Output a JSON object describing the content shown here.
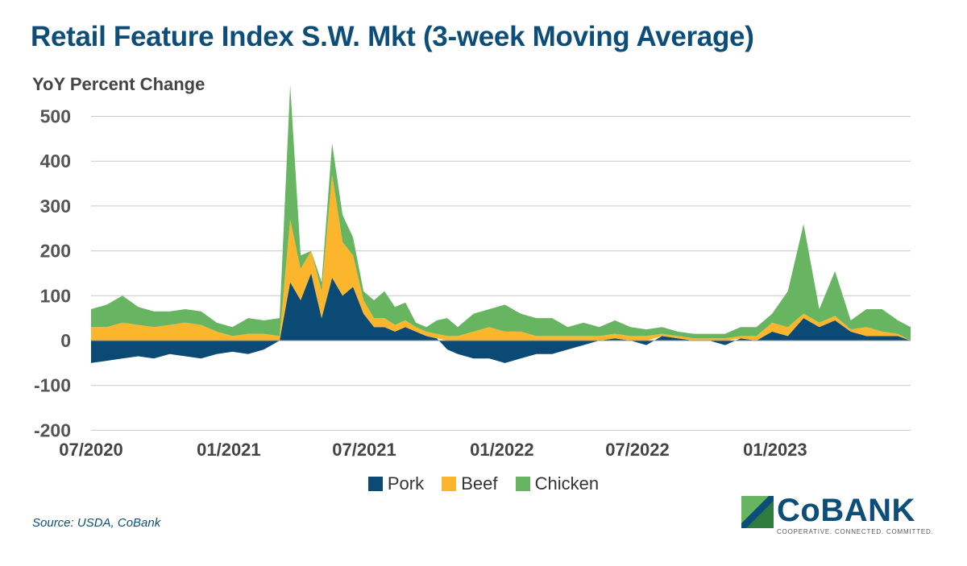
{
  "header": {
    "title": "Retail Feature Index S.W. Mkt (3-week Moving Average)"
  },
  "footer": {
    "source": "Source: USDA, CoBank"
  },
  "logo": {
    "name": "CoBANK",
    "tagline": "COOPERATIVE. CONNECTED. COMMITTED."
  },
  "colors": {
    "pork": "#0b4a75",
    "beef": "#fbb62d",
    "chicken": "#67b561",
    "title": "#0d4d7a",
    "grid": "#c8c8c8"
  },
  "chart_data": {
    "type": "area",
    "stacked": true,
    "title": "Retail Feature Index S.W. Mkt (3-week Moving Average)",
    "ylabel": "YoY Percent Change",
    "xlabel": "",
    "ylim": [
      -220,
      550
    ],
    "y_ticks": [
      500,
      400,
      300,
      200,
      100,
      0,
      -100,
      -200
    ],
    "x_ticks": [
      "07/2020",
      "01/2021",
      "07/2021",
      "01/2022",
      "07/2022",
      "01/2023"
    ],
    "x_range": [
      "2020-07",
      "2023-07"
    ],
    "grid": "horizontal",
    "legend": "bottom-center",
    "x": [
      "2020-07-01",
      "2020-07-22",
      "2020-08-12",
      "2020-09-02",
      "2020-09-23",
      "2020-10-14",
      "2020-11-04",
      "2020-11-25",
      "2020-12-16",
      "2021-01-06",
      "2021-01-27",
      "2021-02-17",
      "2021-03-10",
      "2021-03-24",
      "2021-04-07",
      "2021-04-21",
      "2021-05-05",
      "2021-05-19",
      "2021-06-02",
      "2021-06-16",
      "2021-06-30",
      "2021-07-14",
      "2021-07-28",
      "2021-08-11",
      "2021-08-25",
      "2021-09-08",
      "2021-09-22",
      "2021-10-06",
      "2021-10-20",
      "2021-11-03",
      "2021-11-24",
      "2021-12-15",
      "2022-01-05",
      "2022-01-26",
      "2022-02-16",
      "2022-03-09",
      "2022-03-30",
      "2022-04-20",
      "2022-05-11",
      "2022-06-01",
      "2022-06-22",
      "2022-07-13",
      "2022-08-03",
      "2022-08-24",
      "2022-09-14",
      "2022-10-05",
      "2022-10-26",
      "2022-11-16",
      "2022-12-07",
      "2022-12-28",
      "2023-01-18",
      "2023-02-08",
      "2023-03-01",
      "2023-03-22",
      "2023-04-12",
      "2023-05-03",
      "2023-05-24",
      "2023-06-14",
      "2023-07-01"
    ],
    "series": [
      {
        "name": "Pork",
        "values": [
          -50,
          -45,
          -40,
          -35,
          -40,
          -30,
          -35,
          -40,
          -30,
          -25,
          -30,
          -20,
          0,
          130,
          90,
          150,
          50,
          140,
          100,
          120,
          60,
          30,
          30,
          20,
          30,
          20,
          10,
          5,
          -20,
          -30,
          -40,
          -40,
          -50,
          -40,
          -30,
          -30,
          -20,
          -10,
          0,
          5,
          0,
          -10,
          10,
          5,
          0,
          0,
          -10,
          5,
          0,
          20,
          10,
          50,
          30,
          45,
          20,
          10,
          10,
          10,
          0
        ]
      },
      {
        "name": "Beef",
        "values": [
          30,
          30,
          40,
          35,
          30,
          35,
          40,
          35,
          20,
          10,
          15,
          15,
          10,
          140,
          70,
          50,
          60,
          230,
          120,
          70,
          30,
          20,
          20,
          15,
          15,
          10,
          10,
          10,
          10,
          10,
          20,
          30,
          20,
          20,
          10,
          10,
          10,
          10,
          10,
          10,
          10,
          10,
          5,
          5,
          5,
          5,
          5,
          5,
          10,
          20,
          20,
          10,
          10,
          10,
          5,
          20,
          10,
          5,
          0
        ]
      },
      {
        "name": "Chicken",
        "values": [
          40,
          50,
          60,
          40,
          35,
          30,
          30,
          30,
          20,
          20,
          35,
          30,
          40,
          300,
          30,
          0,
          20,
          70,
          60,
          40,
          20,
          40,
          60,
          40,
          40,
          10,
          10,
          30,
          40,
          20,
          40,
          40,
          60,
          40,
          40,
          40,
          20,
          30,
          20,
          30,
          20,
          15,
          15,
          10,
          10,
          10,
          10,
          20,
          20,
          20,
          80,
          200,
          30,
          100,
          20,
          40,
          50,
          30,
          30
        ]
      }
    ]
  }
}
